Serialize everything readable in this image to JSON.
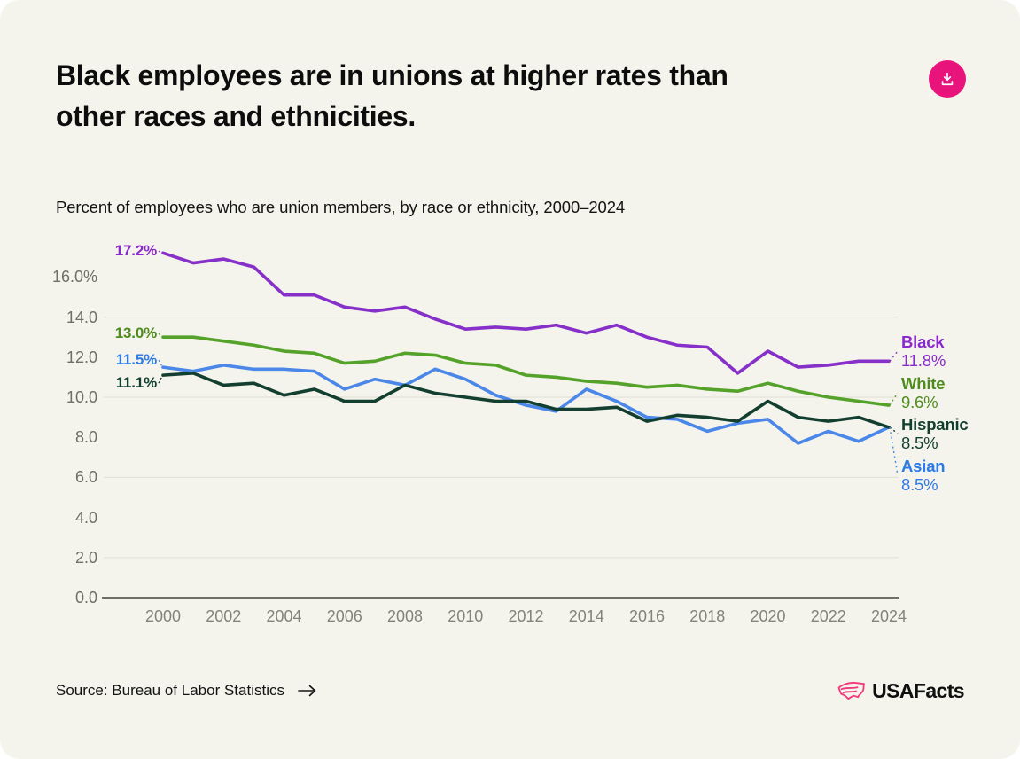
{
  "header": {
    "title": "Black employees are in unions at higher rates than other races and ethnicities.",
    "title_lines": [
      "Black employees are in unions at higher rates than",
      "other races and ethnicities."
    ]
  },
  "subtitle": "Percent of employees who are union members, by race or ethnicity, 2000–2024",
  "footer": {
    "source": "Source: Bureau of Labor Statistics",
    "logo_text": "USAFacts"
  },
  "colors": {
    "page_bg": "#ffffff",
    "card_bg": "#f4f4ec",
    "download_btn": "#e9137c",
    "grid": "#e3e2d9",
    "axis_baseline": "#6f6f68",
    "ytick_text": "#6f6f68",
    "xtick_text": "#83837c",
    "logo_pink": "#f2387b",
    "title_text": "#0d0d0d"
  },
  "chart_data": {
    "type": "line",
    "title": "Black employees are in unions at higher rates than other races and ethnicities.",
    "subtitle": "Percent of employees who are union members, by race or ethnicity, 2000–2024",
    "xlabel": "",
    "ylabel": "Percent of employees who are union members",
    "ylim": [
      0,
      17.6
    ],
    "grid": "horizontal, at 2.0 / 6.0 / 10.0 / 14.0 only, dark baseline at 0.0",
    "legend_position": "labels at right edge of lines",
    "x": [
      2000,
      2001,
      2002,
      2003,
      2004,
      2005,
      2006,
      2007,
      2008,
      2009,
      2010,
      2011,
      2012,
      2013,
      2014,
      2015,
      2016,
      2017,
      2018,
      2019,
      2020,
      2021,
      2022,
      2023,
      2024
    ],
    "x_ticks": [
      "2000",
      "2002",
      "2004",
      "2006",
      "2008",
      "2010",
      "2012",
      "2014",
      "2016",
      "2018",
      "2020",
      "2022",
      "2024"
    ],
    "y_ticks": [
      {
        "label": "16.0%",
        "value": 16.0
      },
      {
        "label": "14.0",
        "value": 14.0
      },
      {
        "label": "12.0",
        "value": 12.0
      },
      {
        "label": "10.0",
        "value": 10.0
      },
      {
        "label": "8.0",
        "value": 8.0
      },
      {
        "label": "6.0",
        "value": 6.0
      },
      {
        "label": "4.0",
        "value": 4.0
      },
      {
        "label": "2.0",
        "value": 2.0
      },
      {
        "label": "0.0",
        "value": 0.0
      }
    ],
    "gridline_values": [
      14,
      10,
      6,
      2
    ],
    "baseline_value": 0,
    "series": [
      {
        "name": "Black",
        "color": "#8630c9",
        "text_color": "#8a2acd",
        "start_label": "17.2%",
        "end_label": "11.8%",
        "values": [
          17.2,
          16.7,
          16.9,
          16.5,
          15.1,
          15.1,
          14.5,
          14.3,
          14.5,
          13.9,
          13.4,
          13.5,
          13.4,
          13.6,
          13.2,
          13.6,
          13.0,
          12.6,
          12.5,
          11.2,
          12.3,
          11.5,
          11.6,
          11.8,
          11.8
        ]
      },
      {
        "name": "White",
        "color": "#55a22a",
        "text_color": "#4e8c1d",
        "start_label": "13.0%",
        "end_label": "9.6%",
        "values": [
          13.0,
          13.0,
          12.8,
          12.6,
          12.3,
          12.2,
          11.7,
          11.8,
          12.2,
          12.1,
          11.7,
          11.6,
          11.1,
          11.0,
          10.8,
          10.7,
          10.5,
          10.6,
          10.4,
          10.3,
          10.7,
          10.3,
          10.0,
          9.8,
          9.6
        ]
      },
      {
        "name": "Hispanic",
        "color": "#123f30",
        "text_color": "#123f30",
        "start_label": "11.1%",
        "end_label": "8.5%",
        "values": [
          11.1,
          11.2,
          10.6,
          10.7,
          10.1,
          10.4,
          9.8,
          9.8,
          10.6,
          10.2,
          10.0,
          9.8,
          9.8,
          9.4,
          9.4,
          9.5,
          8.8,
          9.1,
          9.0,
          8.8,
          9.8,
          9.0,
          8.8,
          9.0,
          8.5
        ]
      },
      {
        "name": "Asian",
        "color": "#4a87e8",
        "text_color": "#2e7ae6",
        "start_label": "11.5%",
        "end_label": "8.5%",
        "values": [
          11.5,
          11.3,
          11.6,
          11.4,
          11.4,
          11.3,
          10.4,
          10.9,
          10.6,
          11.4,
          10.9,
          10.1,
          9.6,
          9.3,
          10.4,
          9.8,
          9.0,
          8.9,
          8.3,
          8.7,
          8.9,
          7.7,
          8.3,
          7.8,
          8.5
        ]
      }
    ]
  }
}
